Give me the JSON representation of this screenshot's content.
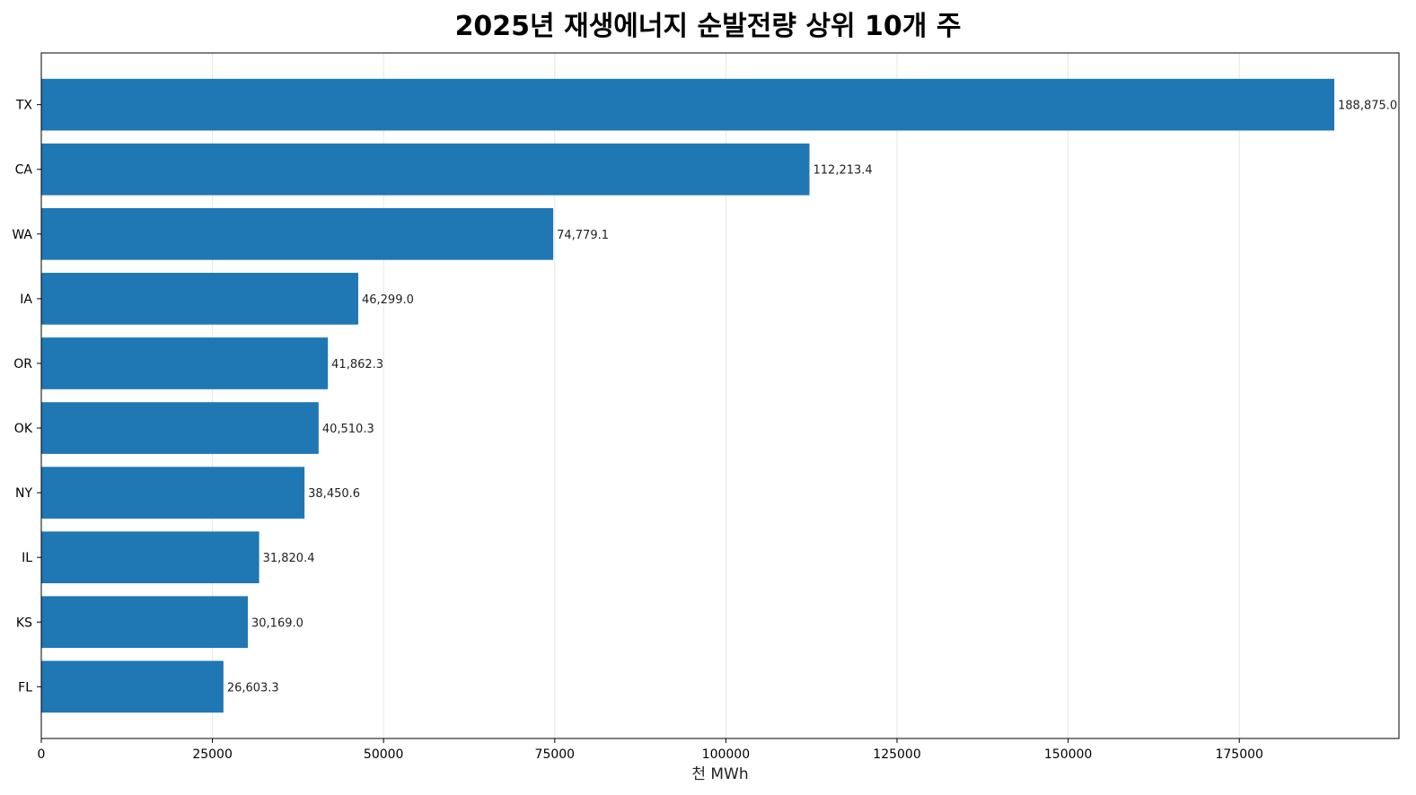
{
  "chart_data": {
    "type": "bar",
    "orientation": "horizontal",
    "title": "2025년 재생에너지 순발전량 상위 10개 주",
    "xlabel": "천 MWh",
    "ylabel": "",
    "categories": [
      "TX",
      "CA",
      "WA",
      "IA",
      "OR",
      "OK",
      "NY",
      "IL",
      "KS",
      "FL"
    ],
    "values": [
      188875.0,
      112213.4,
      74779.1,
      46299.0,
      41862.3,
      40510.3,
      38450.6,
      31820.4,
      30169.0,
      26603.3
    ],
    "value_labels": [
      "188,875.0",
      "112,213.4",
      "74,779.1",
      "46,299.0",
      "41,862.3",
      "40,510.3",
      "38,450.6",
      "31,820.4",
      "30,169.0",
      "26,603.3"
    ],
    "xlim": [
      0,
      198318.75
    ],
    "xticks": [
      0,
      25000,
      50000,
      75000,
      100000,
      125000,
      150000,
      175000
    ],
    "xtick_labels": [
      "0",
      "25000",
      "50000",
      "75000",
      "100000",
      "125000",
      "150000",
      "175000"
    ],
    "grid": "vertical",
    "bar_color": "#1f77b4"
  }
}
